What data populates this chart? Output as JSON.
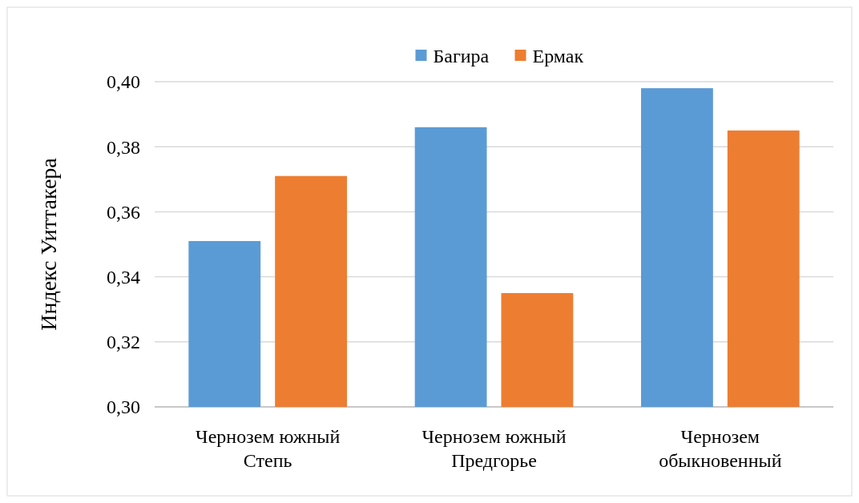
{
  "chart_data": {
    "type": "bar",
    "ylabel": "Индекс Уиттакера",
    "categories": [
      "Чернозем южный Степь",
      "Чернозем южный Предгорье",
      "Чернозем обыкновенный"
    ],
    "series": [
      {
        "name": "Багира",
        "color": "#5b9bd5",
        "values": [
          0.351,
          0.386,
          0.398
        ]
      },
      {
        "name": "Ермак",
        "color": "#ed7d31",
        "values": [
          0.371,
          0.335,
          0.385
        ]
      }
    ],
    "ylim": [
      0.3,
      0.4
    ],
    "yticks": [
      {
        "value": 0.3,
        "label": "0,30"
      },
      {
        "value": 0.32,
        "label": "0,32"
      },
      {
        "value": 0.34,
        "label": "0,34"
      },
      {
        "value": 0.36,
        "label": "0,36"
      },
      {
        "value": 0.38,
        "label": "0,38"
      },
      {
        "value": 0.4,
        "label": "0,40"
      }
    ],
    "grid": "y",
    "legend": "top"
  }
}
